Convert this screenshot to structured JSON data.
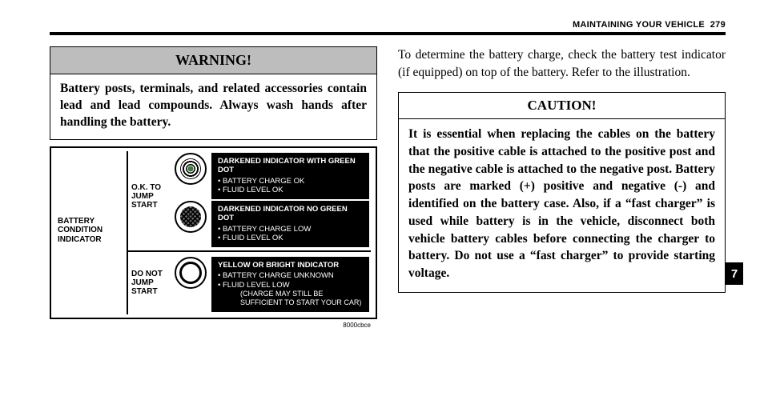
{
  "header": {
    "section": "MAINTAINING YOUR VEHICLE",
    "page": "279"
  },
  "tab": "7",
  "warning": {
    "title": "WARNING!",
    "body": "Battery posts, terminals, and related accessories contain lead and lead compounds. Always wash hands after handling the battery."
  },
  "right_para": "To determine the battery charge, check the battery test indicator (if equipped) on top of the battery. Refer to the illustration.",
  "caution": {
    "title": "CAUTION!",
    "body": "It is essential when replacing the cables on the battery that the positive cable is attached to the positive post and the negative cable is attached to the negative post. Battery posts are marked (+) positive and negative (-) and identified on the battery case. Also, if a “fast charger” is used while battery is in the vehicle, disconnect both vehicle battery cables before connecting the charger to battery. Do not use a “fast charger” to provide starting voltage."
  },
  "figure": {
    "label": "BATTERY\nCONDITION\nINDICATOR",
    "ok_label": "O.K. TO\nJUMP\nSTART",
    "donot_label": "DO NOT\nJUMP\nSTART",
    "ref": "8000cbce",
    "ind1": {
      "title": "DARKENED INDICATOR WITH GREEN DOT",
      "b1": "BATTERY CHARGE OK",
      "b2": "FLUID LEVEL OK"
    },
    "ind2": {
      "title": "DARKENED INDICATOR NO GREEN DOT",
      "b1": "BATTERY CHARGE LOW",
      "b2": "FLUID LEVEL OK"
    },
    "ind3": {
      "title": "YELLOW OR BRIGHT INDICATOR",
      "b1": "BATTERY CHARGE UNKNOWN",
      "b2": "FLUID LEVEL LOW",
      "sub": "(CHARGE MAY STILL BE\nSUFFICIENT TO START YOUR CAR)"
    }
  }
}
